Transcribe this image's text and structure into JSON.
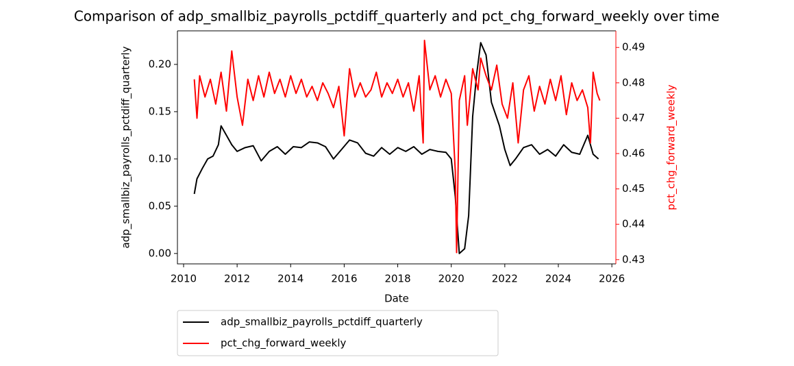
{
  "chart_data": {
    "type": "line",
    "title": "Comparison of adp_smallbiz_payrolls_pctdiff_quarterly and pct_chg_forward_weekly over time",
    "x_label": "Date",
    "y_label": "adp_smallbiz_payrolls_pctdiff_quarterly",
    "y2_label": "pct_chg_forward_weekly",
    "y2_label_color": "#ff0000",
    "xlim": [
      2009.77,
      2026.15
    ],
    "xticks": [
      2010,
      2012,
      2014,
      2016,
      2018,
      2020,
      2022,
      2024,
      2026
    ],
    "ylim": [
      -0.011,
      0.2355
    ],
    "yticks": [
      {
        "value": 0,
        "label": "0.00"
      },
      0.05,
      {
        "value": 0.1,
        "label": "0.10"
      },
      0.15,
      {
        "value": 0.2,
        "label": "0.20"
      }
    ],
    "y2lim": [
      0.4288,
      0.4947
    ],
    "y2ticks": [
      0.43,
      0.44,
      0.45,
      0.46,
      0.47,
      0.48,
      0.49
    ],
    "legend": "below",
    "series": [
      {
        "name": "adp_smallbiz_payrolls_pctdiff_quarterly",
        "color": "#000000",
        "x": [
          2010.4,
          2010.5,
          2010.7,
          2010.9,
          2011.1,
          2011.3,
          2011.4,
          2011.6,
          2011.8,
          2012.0,
          2012.3,
          2012.6,
          2012.9,
          2013.2,
          2013.5,
          2013.8,
          2014.1,
          2014.4,
          2014.7,
          2015.0,
          2015.3,
          2015.6,
          2015.9,
          2016.2,
          2016.5,
          2016.8,
          2017.1,
          2017.4,
          2017.7,
          2018.0,
          2018.3,
          2018.6,
          2018.9,
          2019.2,
          2019.5,
          2019.8,
          2020.0,
          2020.15,
          2020.3,
          2020.5,
          2020.65,
          2020.8,
          2020.95,
          2021.1,
          2021.3,
          2021.5,
          2021.8,
          2022.0,
          2022.2,
          2022.4,
          2022.7,
          2023.0,
          2023.3,
          2023.6,
          2023.9,
          2024.2,
          2024.5,
          2024.8,
          2025.1,
          2025.3,
          2025.5
        ],
        "values": [
          0.063,
          0.079,
          0.09,
          0.1,
          0.103,
          0.115,
          0.135,
          0.125,
          0.115,
          0.108,
          0.112,
          0.114,
          0.098,
          0.108,
          0.113,
          0.105,
          0.113,
          0.112,
          0.118,
          0.117,
          0.113,
          0.1,
          0.11,
          0.12,
          0.117,
          0.106,
          0.103,
          0.112,
          0.105,
          0.112,
          0.108,
          0.113,
          0.105,
          0.11,
          0.108,
          0.107,
          0.1,
          0.06,
          0.0,
          0.005,
          0.04,
          0.145,
          0.19,
          0.223,
          0.21,
          0.16,
          0.135,
          0.11,
          0.093,
          0.1,
          0.112,
          0.115,
          0.105,
          0.11,
          0.103,
          0.115,
          0.107,
          0.105,
          0.125,
          0.105,
          0.1
        ]
      },
      {
        "name": "pct_chg_forward_weekly",
        "color": "#ff0000",
        "axis": "y2",
        "x": [
          2010.4,
          2010.5,
          2010.6,
          2010.8,
          2011.0,
          2011.2,
          2011.4,
          2011.6,
          2011.8,
          2012.0,
          2012.2,
          2012.4,
          2012.6,
          2012.8,
          2013.0,
          2013.2,
          2013.4,
          2013.6,
          2013.8,
          2014.0,
          2014.2,
          2014.4,
          2014.6,
          2014.8,
          2015.0,
          2015.2,
          2015.4,
          2015.6,
          2015.8,
          2016.0,
          2016.2,
          2016.4,
          2016.6,
          2016.8,
          2017.0,
          2017.2,
          2017.4,
          2017.6,
          2017.8,
          2018.0,
          2018.2,
          2018.4,
          2018.6,
          2018.8,
          2018.95,
          2019.0,
          2019.2,
          2019.4,
          2019.6,
          2019.8,
          2020.0,
          2020.15,
          2020.2,
          2020.3,
          2020.5,
          2020.6,
          2020.8,
          2021.0,
          2021.1,
          2021.3,
          2021.5,
          2021.7,
          2021.9,
          2022.1,
          2022.3,
          2022.5,
          2022.7,
          2022.9,
          2023.1,
          2023.3,
          2023.5,
          2023.7,
          2023.9,
          2024.1,
          2024.3,
          2024.5,
          2024.7,
          2024.9,
          2025.1,
          2025.2,
          2025.3,
          2025.45,
          2025.55
        ],
        "values": [
          0.481,
          0.47,
          0.482,
          0.476,
          0.481,
          0.474,
          0.483,
          0.472,
          0.489,
          0.476,
          0.468,
          0.481,
          0.475,
          0.482,
          0.476,
          0.483,
          0.477,
          0.481,
          0.476,
          0.482,
          0.477,
          0.481,
          0.476,
          0.479,
          0.475,
          0.48,
          0.477,
          0.473,
          0.479,
          0.465,
          0.484,
          0.476,
          0.48,
          0.476,
          0.478,
          0.483,
          0.476,
          0.48,
          0.477,
          0.481,
          0.476,
          0.48,
          0.472,
          0.482,
          0.463,
          0.492,
          0.478,
          0.482,
          0.476,
          0.481,
          0.477,
          0.455,
          0.432,
          0.475,
          0.482,
          0.468,
          0.484,
          0.478,
          0.487,
          0.482,
          0.478,
          0.485,
          0.474,
          0.47,
          0.48,
          0.463,
          0.478,
          0.482,
          0.472,
          0.479,
          0.474,
          0.481,
          0.475,
          0.482,
          0.471,
          0.48,
          0.475,
          0.478,
          0.473,
          0.463,
          0.483,
          0.477,
          0.475
        ]
      }
    ]
  }
}
